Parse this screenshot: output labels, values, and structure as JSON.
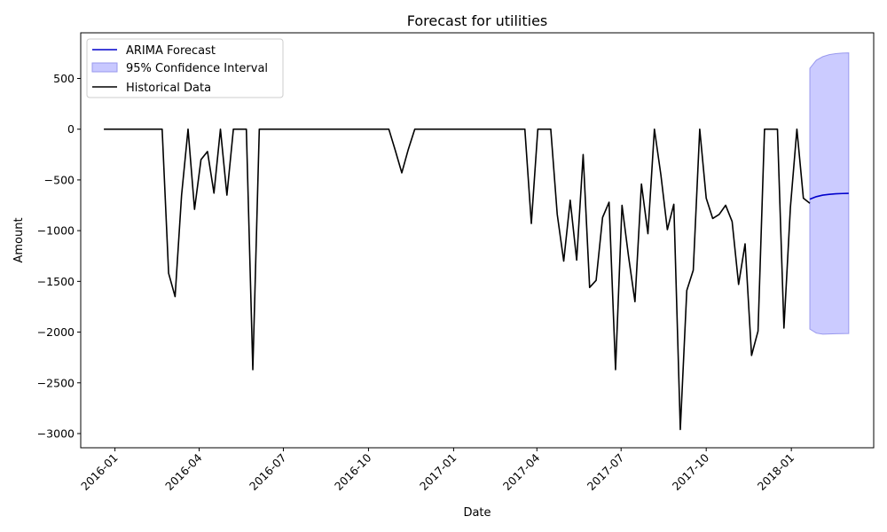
{
  "chart_data": {
    "type": "line",
    "title": "Forecast for utilities",
    "xlabel": "Date",
    "ylabel": "Amount",
    "x_tick_labels": [
      "2016-01",
      "2016-04",
      "2016-07",
      "2016-10",
      "2017-01",
      "2017-04",
      "2017-07",
      "2017-10",
      "2018-01"
    ],
    "y_ticks": [
      500,
      0,
      -500,
      -1000,
      -1500,
      -2000,
      -2500,
      -3000
    ],
    "y_tick_labels": [
      "500",
      "0",
      "−500",
      "−1000",
      "−1500",
      "−2000",
      "−2500",
      "−3000"
    ],
    "xlim": [
      "2015-11-25",
      "2018-03-31"
    ],
    "ylim": [
      -3140,
      950
    ],
    "grid": false,
    "legend_position": "top-left",
    "legend": [
      "ARIMA Forecast",
      "95% Confidence Interval",
      "Historical Data"
    ],
    "colors": {
      "forecast": "#0000cc",
      "confidence": "#c8c8ff",
      "confidence_edge": "#9999ee",
      "historical": "#000000"
    },
    "series": [
      {
        "name": "Historical Data",
        "x": [
          "2015-12-20",
          "2015-12-27",
          "2016-01-03",
          "2016-01-10",
          "2016-01-17",
          "2016-01-24",
          "2016-01-31",
          "2016-02-07",
          "2016-02-14",
          "2016-02-21",
          "2016-02-28",
          "2016-03-06",
          "2016-03-13",
          "2016-03-20",
          "2016-03-27",
          "2016-04-03",
          "2016-04-10",
          "2016-04-17",
          "2016-04-24",
          "2016-05-01",
          "2016-05-08",
          "2016-05-15",
          "2016-05-22",
          "2016-05-29",
          "2016-06-05",
          "2016-06-12",
          "2016-06-19",
          "2016-06-26",
          "2016-07-03",
          "2016-07-10",
          "2016-07-17",
          "2016-07-24",
          "2016-07-31",
          "2016-08-07",
          "2016-08-14",
          "2016-08-21",
          "2016-08-28",
          "2016-09-04",
          "2016-09-11",
          "2016-09-18",
          "2016-09-25",
          "2016-10-02",
          "2016-10-09",
          "2016-10-16",
          "2016-10-23",
          "2016-10-30",
          "2016-11-06",
          "2016-11-13",
          "2016-11-20",
          "2016-11-27",
          "2016-12-04",
          "2016-12-11",
          "2016-12-18",
          "2016-12-25",
          "2017-01-01",
          "2017-01-08",
          "2017-01-15",
          "2017-01-22",
          "2017-01-29",
          "2017-02-05",
          "2017-02-12",
          "2017-02-19",
          "2017-02-26",
          "2017-03-05",
          "2017-03-12",
          "2017-03-19",
          "2017-03-26",
          "2017-04-02",
          "2017-04-09",
          "2017-04-16",
          "2017-04-23",
          "2017-04-30",
          "2017-05-07",
          "2017-05-14",
          "2017-05-21",
          "2017-05-28",
          "2017-06-04",
          "2017-06-11",
          "2017-06-18",
          "2017-06-25",
          "2017-07-02",
          "2017-07-09",
          "2017-07-16",
          "2017-07-23",
          "2017-07-30",
          "2017-08-06",
          "2017-08-13",
          "2017-08-20",
          "2017-08-27",
          "2017-09-03",
          "2017-09-10",
          "2017-09-17",
          "2017-09-24",
          "2017-10-01",
          "2017-10-08",
          "2017-10-15",
          "2017-10-22",
          "2017-10-29",
          "2017-11-05",
          "2017-11-12",
          "2017-11-19",
          "2017-11-26",
          "2017-12-03",
          "2017-12-10",
          "2017-12-17",
          "2017-12-24",
          "2017-12-31",
          "2018-01-07",
          "2018-01-14",
          "2018-01-21"
        ],
        "values": [
          0,
          0,
          0,
          0,
          0,
          0,
          0,
          0,
          0,
          0,
          -1420,
          -1650,
          -650,
          0,
          -790,
          -300,
          -220,
          -630,
          0,
          -650,
          0,
          0,
          0,
          -2370,
          0,
          0,
          0,
          0,
          0,
          0,
          0,
          0,
          0,
          0,
          0,
          0,
          0,
          0,
          0,
          0,
          0,
          0,
          0,
          0,
          0,
          -210,
          -430,
          -200,
          0,
          0,
          0,
          0,
          0,
          0,
          0,
          0,
          0,
          0,
          0,
          0,
          0,
          0,
          0,
          0,
          0,
          0,
          -930,
          0,
          0,
          0,
          -840,
          -1300,
          -700,
          -1290,
          -250,
          -1560,
          -1490,
          -870,
          -720,
          -2370,
          -750,
          -1250,
          -1700,
          -540,
          -1030,
          0,
          -450,
          -990,
          -740,
          -2960,
          -1590,
          -1390,
          0,
          -680,
          -880,
          -840,
          -750,
          -910,
          -1530,
          -1130,
          -2230,
          -1990,
          0,
          0,
          0,
          -1960,
          -770,
          0,
          -680,
          -730
        ]
      },
      {
        "name": "ARIMA Forecast",
        "x": [
          "2018-01-21",
          "2018-01-28",
          "2018-02-04",
          "2018-02-11",
          "2018-02-18",
          "2018-02-25",
          "2018-03-04"
        ],
        "values": [
          -690,
          -665,
          -650,
          -642,
          -637,
          -634,
          -632
        ]
      }
    ],
    "confidence_interval": {
      "name": "95% Confidence Interval",
      "x": [
        "2018-01-21",
        "2018-01-28",
        "2018-02-04",
        "2018-02-11",
        "2018-02-18",
        "2018-02-25",
        "2018-03-04"
      ],
      "lower": [
        -1970,
        -2010,
        -2020,
        -2018,
        -2016,
        -2015,
        -2014
      ],
      "upper": [
        600,
        680,
        715,
        735,
        745,
        750,
        752
      ]
    }
  }
}
